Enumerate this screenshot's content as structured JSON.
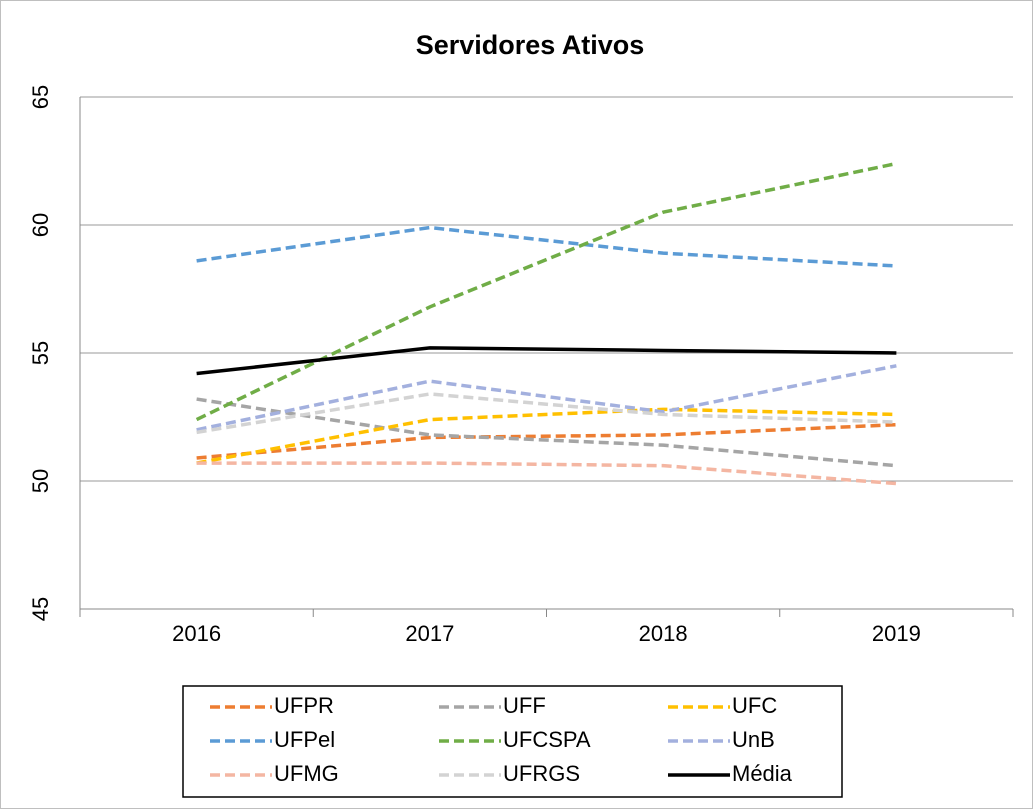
{
  "chart_data": {
    "type": "line",
    "title": "Servidores Ativos",
    "categories": [
      "2016",
      "2017",
      "2018",
      "2019"
    ],
    "ylim": [
      45,
      65
    ],
    "yticks": [
      45,
      50,
      55,
      60,
      65
    ],
    "grid": true,
    "series": [
      {
        "name": "UFPR",
        "color": "#ed7d31",
        "dashed": true,
        "values": [
          50.9,
          51.7,
          51.8,
          52.2
        ]
      },
      {
        "name": "UFF",
        "color": "#a5a5a5",
        "dashed": true,
        "values": [
          53.2,
          51.8,
          51.4,
          50.6
        ]
      },
      {
        "name": "UFC",
        "color": "#ffc000",
        "dashed": true,
        "values": [
          50.7,
          52.4,
          52.8,
          52.6
        ]
      },
      {
        "name": "UFPel",
        "color": "#5b9bd5",
        "dashed": true,
        "values": [
          58.6,
          59.9,
          58.9,
          58.4
        ]
      },
      {
        "name": "UFCSPA",
        "color": "#70ad47",
        "dashed": true,
        "values": [
          52.4,
          56.8,
          60.5,
          62.4
        ]
      },
      {
        "name": "UnB",
        "color": "#a3b0de",
        "dashed": true,
        "values": [
          52.0,
          53.9,
          52.7,
          54.5
        ]
      },
      {
        "name": "UFMG",
        "color": "#f4b6a2",
        "dashed": true,
        "values": [
          50.7,
          50.7,
          50.6,
          49.9
        ]
      },
      {
        "name": "UFRGS",
        "color": "#d3d3d3",
        "dashed": true,
        "values": [
          51.9,
          53.4,
          52.6,
          52.3
        ]
      },
      {
        "name": "Média",
        "color": "#000000",
        "dashed": false,
        "values": [
          54.2,
          55.2,
          55.1,
          55.0
        ]
      }
    ]
  }
}
